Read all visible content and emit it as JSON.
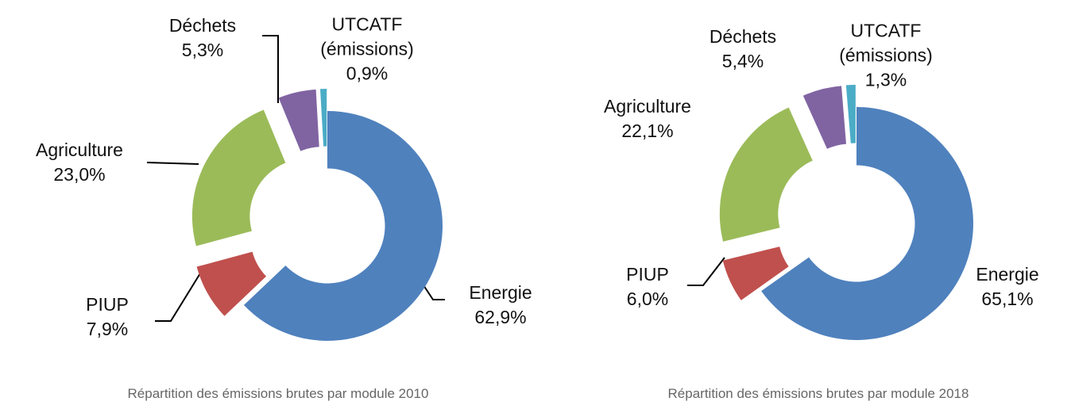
{
  "chart_data": [
    {
      "type": "pie",
      "donut": true,
      "title": "Répartition des émissions brutes par module 2010",
      "categories": [
        "Energie",
        "PIUP",
        "Agriculture",
        "Déchets",
        "UTCATF (émissions)"
      ],
      "values": [
        62.9,
        7.9,
        23.0,
        5.3,
        0.9
      ],
      "value_labels": [
        "62,9%",
        "7,9%",
        "23,0%",
        "5,3%",
        "0,9%"
      ],
      "colors": [
        "#4f81bd",
        "#c0504d",
        "#9bbb59",
        "#8064a2",
        "#4bacc6"
      ]
    },
    {
      "type": "pie",
      "donut": true,
      "title": "Répartition des émissions brutes par module 2018",
      "categories": [
        "Energie",
        "PIUP",
        "Agriculture",
        "Déchets",
        "UTCATF (émissions)"
      ],
      "values": [
        65.1,
        6.0,
        22.1,
        5.4,
        1.3
      ],
      "value_labels": [
        "65,1%",
        "6,0%",
        "22,1%",
        "5,4%",
        "1,3%"
      ],
      "colors": [
        "#4f81bd",
        "#c0504d",
        "#9bbb59",
        "#8064a2",
        "#4bacc6"
      ]
    }
  ]
}
